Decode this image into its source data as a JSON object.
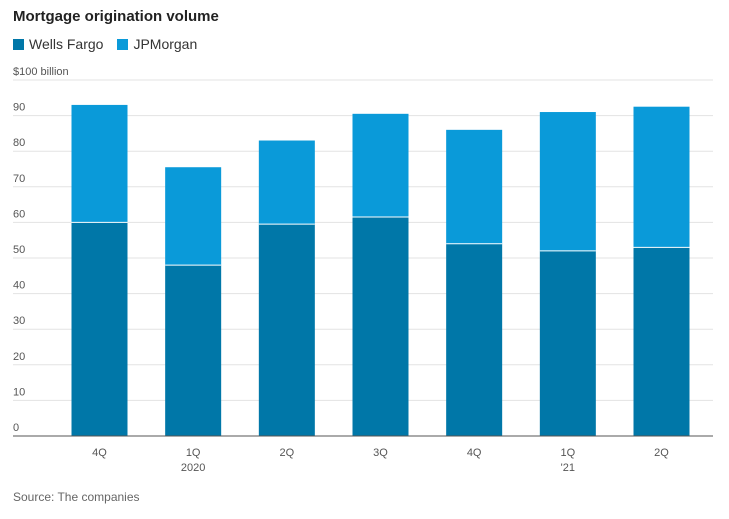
{
  "title": "Mortgage origination volume",
  "legend": [
    {
      "label": "Wells Fargo",
      "color": "#0077a8"
    },
    {
      "label": "JPMorgan",
      "color": "#0a9ad9"
    }
  ],
  "source": "Source: The companies",
  "chart_data": {
    "type": "bar",
    "stacked": true,
    "categories": [
      {
        "label": "4Q",
        "sublabel": ""
      },
      {
        "label": "1Q",
        "sublabel": "2020"
      },
      {
        "label": "2Q",
        "sublabel": ""
      },
      {
        "label": "3Q",
        "sublabel": ""
      },
      {
        "label": "4Q",
        "sublabel": ""
      },
      {
        "label": "1Q",
        "sublabel": "'21"
      },
      {
        "label": "2Q",
        "sublabel": ""
      }
    ],
    "series": [
      {
        "name": "Wells Fargo",
        "color": "#0077a8",
        "values": [
          60,
          48,
          59.5,
          61.5,
          54,
          52,
          53
        ]
      },
      {
        "name": "JPMorgan",
        "color": "#0a9ad9",
        "values": [
          33,
          27.5,
          23.5,
          29,
          32,
          39,
          39.5
        ]
      }
    ],
    "ylim": [
      0,
      100
    ],
    "yticks": [
      0,
      10,
      20,
      30,
      40,
      50,
      60,
      70,
      80,
      90
    ],
    "ytick_top_label": "$100 billion",
    "grid": true
  }
}
